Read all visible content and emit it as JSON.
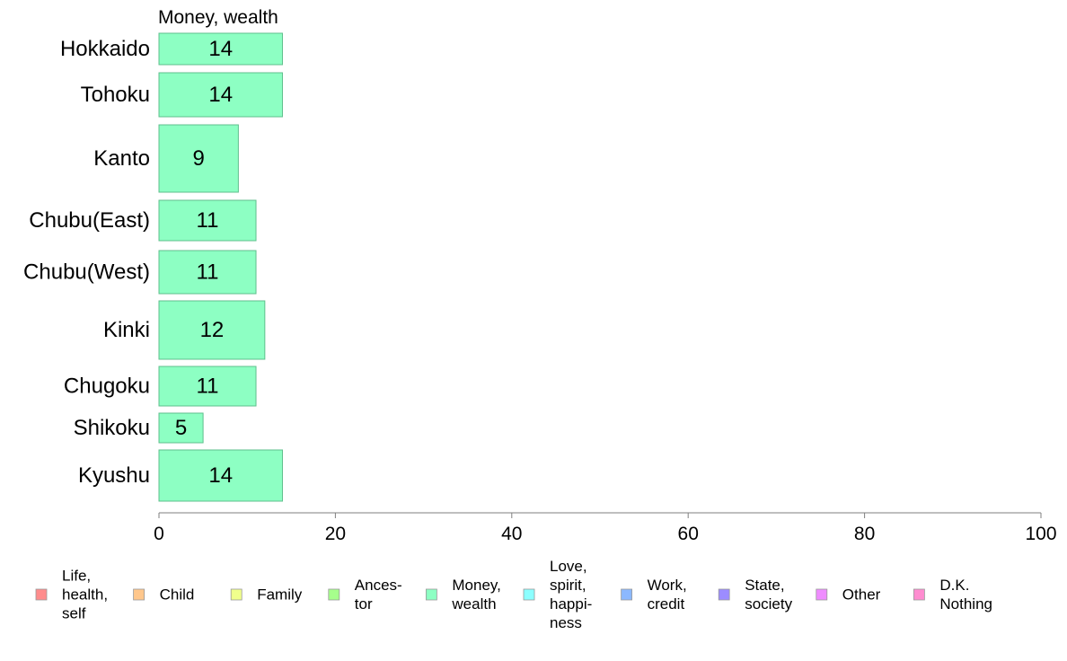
{
  "chart_data": {
    "type": "bar",
    "orientation": "horizontal",
    "title": "Money, wealth",
    "categories": [
      "Hokkaido",
      "Tohoku",
      "Kanto",
      "Chubu(East)",
      "Chubu(West)",
      "Kinki",
      "Chugoku",
      "Shikoku",
      "Kyushu"
    ],
    "values": [
      14,
      14,
      9,
      11,
      11,
      12,
      11,
      5,
      14
    ],
    "data_labels": [
      "14",
      "14",
      "9",
      "11",
      "11",
      "12",
      "11",
      "5",
      "14"
    ],
    "xlim": [
      0,
      100
    ],
    "x_ticks": [
      0,
      20,
      40,
      60,
      80,
      100
    ],
    "x_tick_labels": [
      "0",
      "20",
      "40",
      "60",
      "80",
      "100"
    ],
    "xlabel": "",
    "ylabel": "",
    "grid": false,
    "bar_color": "#8dffc3",
    "bar_edge_color": "#5fbf8c",
    "legend_placement": "bottom",
    "legend": [
      {
        "lines": [
          "Life,",
          "health,",
          "self"
        ],
        "color": "#ff8c8c"
      },
      {
        "lines": [
          "Child"
        ],
        "color": "#ffc78c"
      },
      {
        "lines": [
          "Family"
        ],
        "color": "#f0ff8c"
      },
      {
        "lines": [
          "Ances-",
          "tor"
        ],
        "color": "#a6ff8c"
      },
      {
        "lines": [
          "Money,",
          "wealth"
        ],
        "color": "#8dffc3"
      },
      {
        "lines": [
          "Love,",
          "spirit,",
          "happi-",
          "ness"
        ],
        "color": "#8cffff"
      },
      {
        "lines": [
          "Work,",
          "credit"
        ],
        "color": "#8cb8ff"
      },
      {
        "lines": [
          "State,",
          "society"
        ],
        "color": "#9c8cff"
      },
      {
        "lines": [
          "Other"
        ],
        "color": "#ef8cff"
      },
      {
        "lines": [
          "D.K.",
          "Nothing"
        ],
        "color": "#ff8cd0"
      }
    ]
  }
}
